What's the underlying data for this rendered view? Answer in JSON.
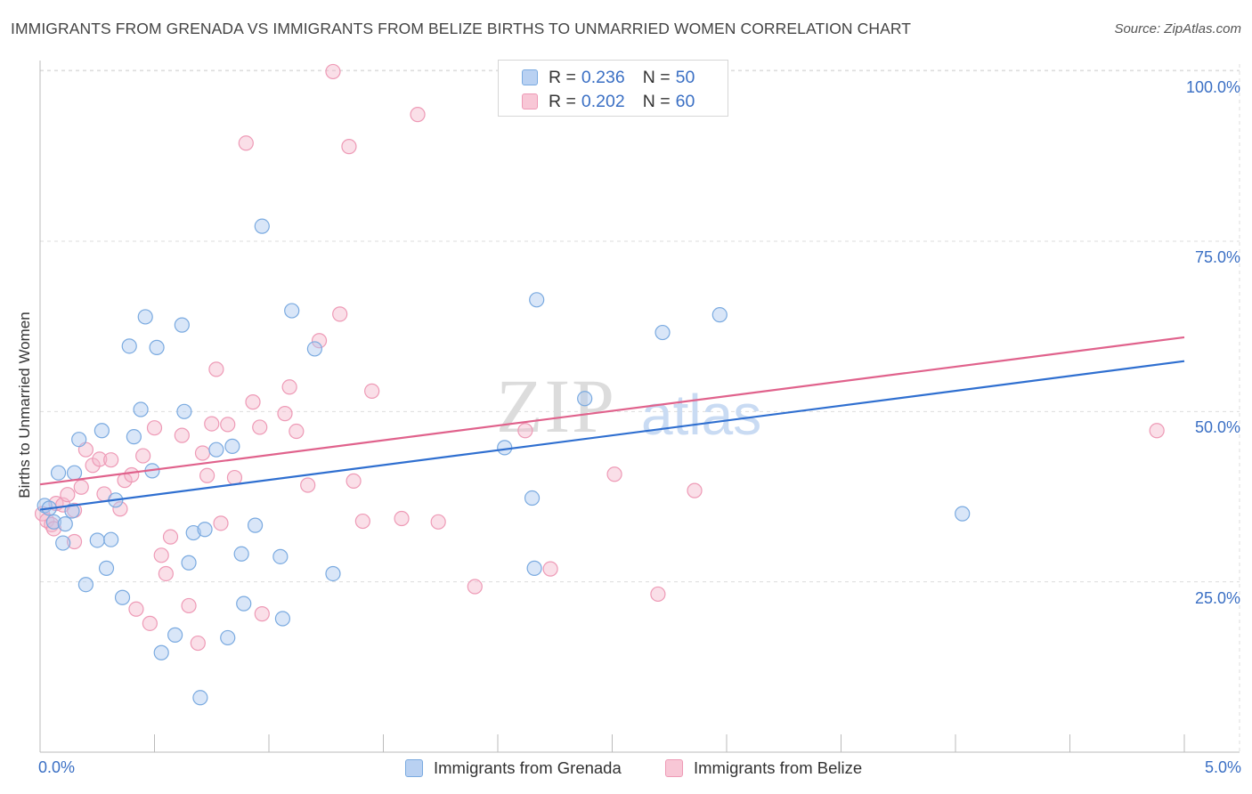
{
  "header": {
    "title": "IMMIGRANTS FROM GRENADA VS IMMIGRANTS FROM BELIZE BIRTHS TO UNMARRIED WOMEN CORRELATION CHART",
    "source": "Source: ZipAtlas.com"
  },
  "legend": {
    "rows": [
      {
        "r_label": "R =",
        "r_value": "0.236",
        "n_label": "N =",
        "n_value": "50"
      },
      {
        "r_label": "R =",
        "r_value": "0.202",
        "n_label": "N =",
        "n_value": "60"
      }
    ]
  },
  "bottom_legend": {
    "grenada": "Immigrants from Grenada",
    "belize": "Immigrants from Belize"
  },
  "colors": {
    "grenada_fill": "#aac8f0",
    "grenada_stroke": "#7aaae0",
    "grenada_line": "#2f6fd0",
    "belize_fill": "#f5b8cc",
    "belize_stroke": "#ee9ab6",
    "belize_line": "#e0628c",
    "tick_text": "#3a6fc4",
    "grid": "#dddddd"
  },
  "chart_data": {
    "type": "scatter",
    "title": "IMMIGRANTS FROM GRENADA VS IMMIGRANTS FROM BELIZE BIRTHS TO UNMARRIED WOMEN CORRELATION CHART",
    "xlabel": "",
    "ylabel": "Births to Unmarried Women",
    "xlim": [
      0,
      5
    ],
    "ylim": [
      0,
      101
    ],
    "x_tick_labels": [
      "0.0%",
      "5.0%"
    ],
    "y_ticks": [
      25,
      50,
      75,
      100
    ],
    "y_tick_labels": [
      "25.0%",
      "50.0%",
      "75.0%",
      "100.0%"
    ],
    "grid": true,
    "legend_position": "top-center",
    "watermark": "ZIPatlas",
    "series": [
      {
        "name": "Immigrants from Grenada",
        "r": 0.236,
        "n": 50,
        "trend": {
          "x": [
            0,
            5
          ],
          "y": [
            35.6,
            57.4
          ]
        },
        "points": [
          [
            0.02,
            36.2
          ],
          [
            0.04,
            35.8
          ],
          [
            0.06,
            33.8
          ],
          [
            0.08,
            41.0
          ],
          [
            0.1,
            30.7
          ],
          [
            0.11,
            33.5
          ],
          [
            0.14,
            35.4
          ],
          [
            0.15,
            41.0
          ],
          [
            0.17,
            45.9
          ],
          [
            0.2,
            24.6
          ],
          [
            0.25,
            31.1
          ],
          [
            0.27,
            47.2
          ],
          [
            0.29,
            27.0
          ],
          [
            0.31,
            31.2
          ],
          [
            0.33,
            37.0
          ],
          [
            0.36,
            22.7
          ],
          [
            0.39,
            59.6
          ],
          [
            0.41,
            46.3
          ],
          [
            0.44,
            50.3
          ],
          [
            0.46,
            63.9
          ],
          [
            0.49,
            41.3
          ],
          [
            0.51,
            59.4
          ],
          [
            0.53,
            14.6
          ],
          [
            0.59,
            17.2
          ],
          [
            0.62,
            62.7
          ],
          [
            0.63,
            50.0
          ],
          [
            0.65,
            27.8
          ],
          [
            0.67,
            32.2
          ],
          [
            0.7,
            8.0
          ],
          [
            0.72,
            32.7
          ],
          [
            0.77,
            44.4
          ],
          [
            0.82,
            16.8
          ],
          [
            0.84,
            44.9
          ],
          [
            0.88,
            29.1
          ],
          [
            0.89,
            21.8
          ],
          [
            0.94,
            33.3
          ],
          [
            0.97,
            77.2
          ],
          [
            1.05,
            28.7
          ],
          [
            1.06,
            19.6
          ],
          [
            1.1,
            64.8
          ],
          [
            1.2,
            59.2
          ],
          [
            1.28,
            26.2
          ],
          [
            2.03,
            44.7
          ],
          [
            2.15,
            37.3
          ],
          [
            2.16,
            27.0
          ],
          [
            2.17,
            66.4
          ],
          [
            2.38,
            51.9
          ],
          [
            2.72,
            61.6
          ],
          [
            2.97,
            64.2
          ],
          [
            4.03,
            35.0
          ]
        ]
      },
      {
        "name": "Immigrants from Belize",
        "r": 0.202,
        "n": 60,
        "trend": {
          "x": [
            0,
            5
          ],
          "y": [
            39.3,
            60.9
          ]
        },
        "points": [
          [
            0.01,
            35.0
          ],
          [
            0.03,
            34.0
          ],
          [
            0.05,
            33.4
          ],
          [
            0.07,
            36.5
          ],
          [
            0.1,
            36.3
          ],
          [
            0.12,
            37.8
          ],
          [
            0.15,
            30.9
          ],
          [
            0.18,
            38.9
          ],
          [
            0.2,
            44.4
          ],
          [
            0.23,
            42.1
          ],
          [
            0.26,
            43.0
          ],
          [
            0.28,
            37.9
          ],
          [
            0.31,
            42.9
          ],
          [
            0.35,
            35.7
          ],
          [
            0.37,
            39.9
          ],
          [
            0.4,
            40.7
          ],
          [
            0.42,
            21.0
          ],
          [
            0.45,
            43.5
          ],
          [
            0.48,
            18.9
          ],
          [
            0.5,
            47.6
          ],
          [
            0.53,
            28.9
          ],
          [
            0.55,
            26.2
          ],
          [
            0.57,
            31.6
          ],
          [
            0.62,
            46.5
          ],
          [
            0.65,
            21.5
          ],
          [
            0.69,
            16.0
          ],
          [
            0.71,
            43.9
          ],
          [
            0.73,
            40.6
          ],
          [
            0.75,
            48.2
          ],
          [
            0.77,
            56.2
          ],
          [
            0.79,
            33.6
          ],
          [
            0.82,
            48.1
          ],
          [
            0.85,
            40.3
          ],
          [
            0.9,
            89.4
          ],
          [
            0.93,
            51.4
          ],
          [
            0.96,
            47.7
          ],
          [
            0.97,
            20.3
          ],
          [
            1.07,
            49.7
          ],
          [
            1.09,
            53.6
          ],
          [
            1.12,
            47.1
          ],
          [
            1.17,
            39.2
          ],
          [
            1.22,
            60.4
          ],
          [
            1.28,
            99.9
          ],
          [
            1.31,
            64.3
          ],
          [
            1.35,
            88.9
          ],
          [
            1.37,
            39.8
          ],
          [
            1.41,
            33.9
          ],
          [
            1.45,
            53.0
          ],
          [
            1.58,
            34.3
          ],
          [
            1.65,
            93.6
          ],
          [
            1.74,
            33.8
          ],
          [
            1.9,
            24.3
          ],
          [
            2.12,
            47.2
          ],
          [
            2.23,
            26.9
          ],
          [
            2.51,
            40.8
          ],
          [
            2.7,
            23.2
          ],
          [
            2.86,
            38.4
          ],
          [
            4.88,
            47.2
          ],
          [
            0.06,
            32.8
          ],
          [
            0.15,
            35.5
          ]
        ]
      }
    ]
  }
}
